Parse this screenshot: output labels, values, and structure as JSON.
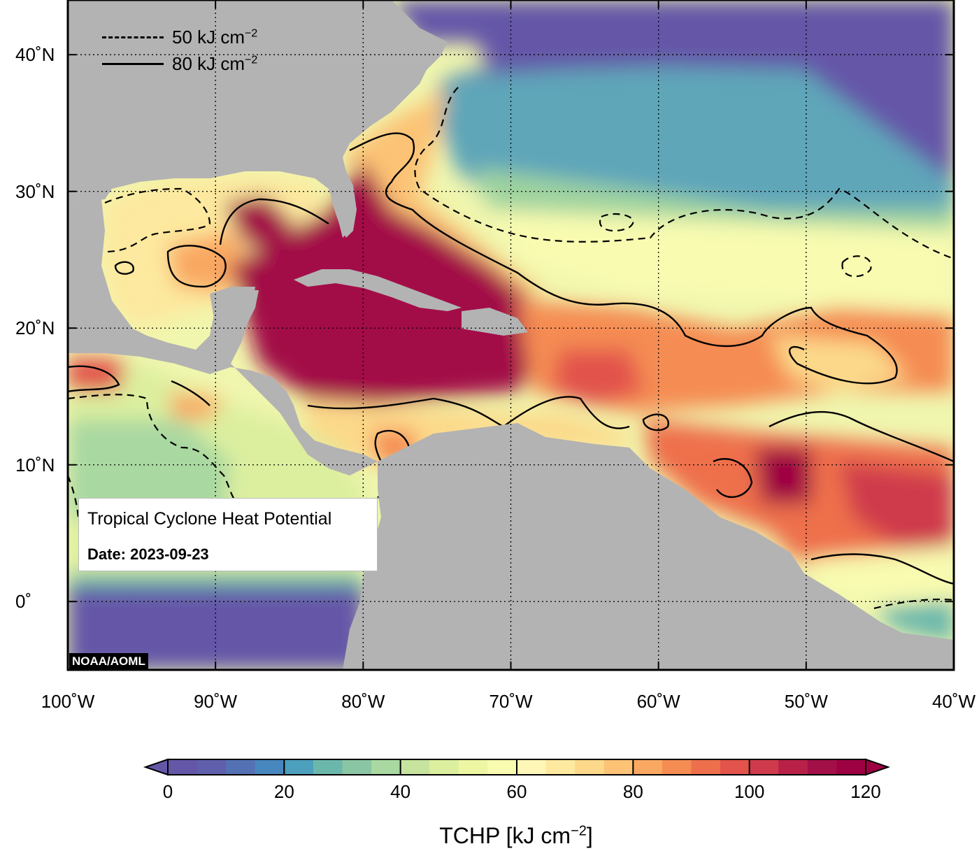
{
  "map": {
    "frame": {
      "lon_min": -100,
      "lon_max": -40,
      "lat_min": -5,
      "lat_max": 44
    },
    "lat_labels": [
      {
        "lat": 40,
        "text": "40˚N"
      },
      {
        "lat": 30,
        "text": "30˚N"
      },
      {
        "lat": 20,
        "text": "20˚N"
      },
      {
        "lat": 10,
        "text": "10˚N"
      },
      {
        "lat": 0,
        "text": "0˚"
      }
    ],
    "lon_labels": [
      {
        "lon": -100,
        "text": "100˚W"
      },
      {
        "lon": -90,
        "text": "90˚W"
      },
      {
        "lon": -80,
        "text": "80˚W"
      },
      {
        "lon": -70,
        "text": "70˚W"
      },
      {
        "lon": -60,
        "text": "60˚W"
      },
      {
        "lon": -50,
        "text": "50˚W"
      },
      {
        "lon": -40,
        "text": "40˚W"
      }
    ],
    "colors": {
      "land": "#b3b3b3",
      "ocean_low": "#6557a8",
      "frame": "#000000"
    }
  },
  "legend": {
    "dashed_label": "50 kJ cm",
    "dashed_exp": "−2",
    "solid_label": "80 kJ cm",
    "solid_exp": "−2"
  },
  "info": {
    "title": "Tropical Cyclone Heat Potential",
    "date_label": "Date: 2023-09-23"
  },
  "credit": "NOAA/AOML",
  "colorbar": {
    "min": 0,
    "max": 120,
    "step": 5,
    "ticks": [
      "0",
      "20",
      "40",
      "60",
      "80",
      "100",
      "120"
    ],
    "title": "TCHP [kJ cm",
    "title_exp": "−2",
    "title_close": "]",
    "colors": [
      "#6557a8",
      "#5f5fac",
      "#5472b3",
      "#4887bd",
      "#4c9fbd",
      "#6cb7ac",
      "#8ac5a4",
      "#a9d8a1",
      "#c7e49e",
      "#dcef9f",
      "#edf7a3",
      "#f8fbb0",
      "#fef7b7",
      "#fde99f",
      "#fcd98a",
      "#fcc376",
      "#f9a862",
      "#f58c53",
      "#ee6f4c",
      "#e2534b",
      "#cf3a4c",
      "#b92048",
      "#a30f47",
      "#9e0142"
    ]
  }
}
